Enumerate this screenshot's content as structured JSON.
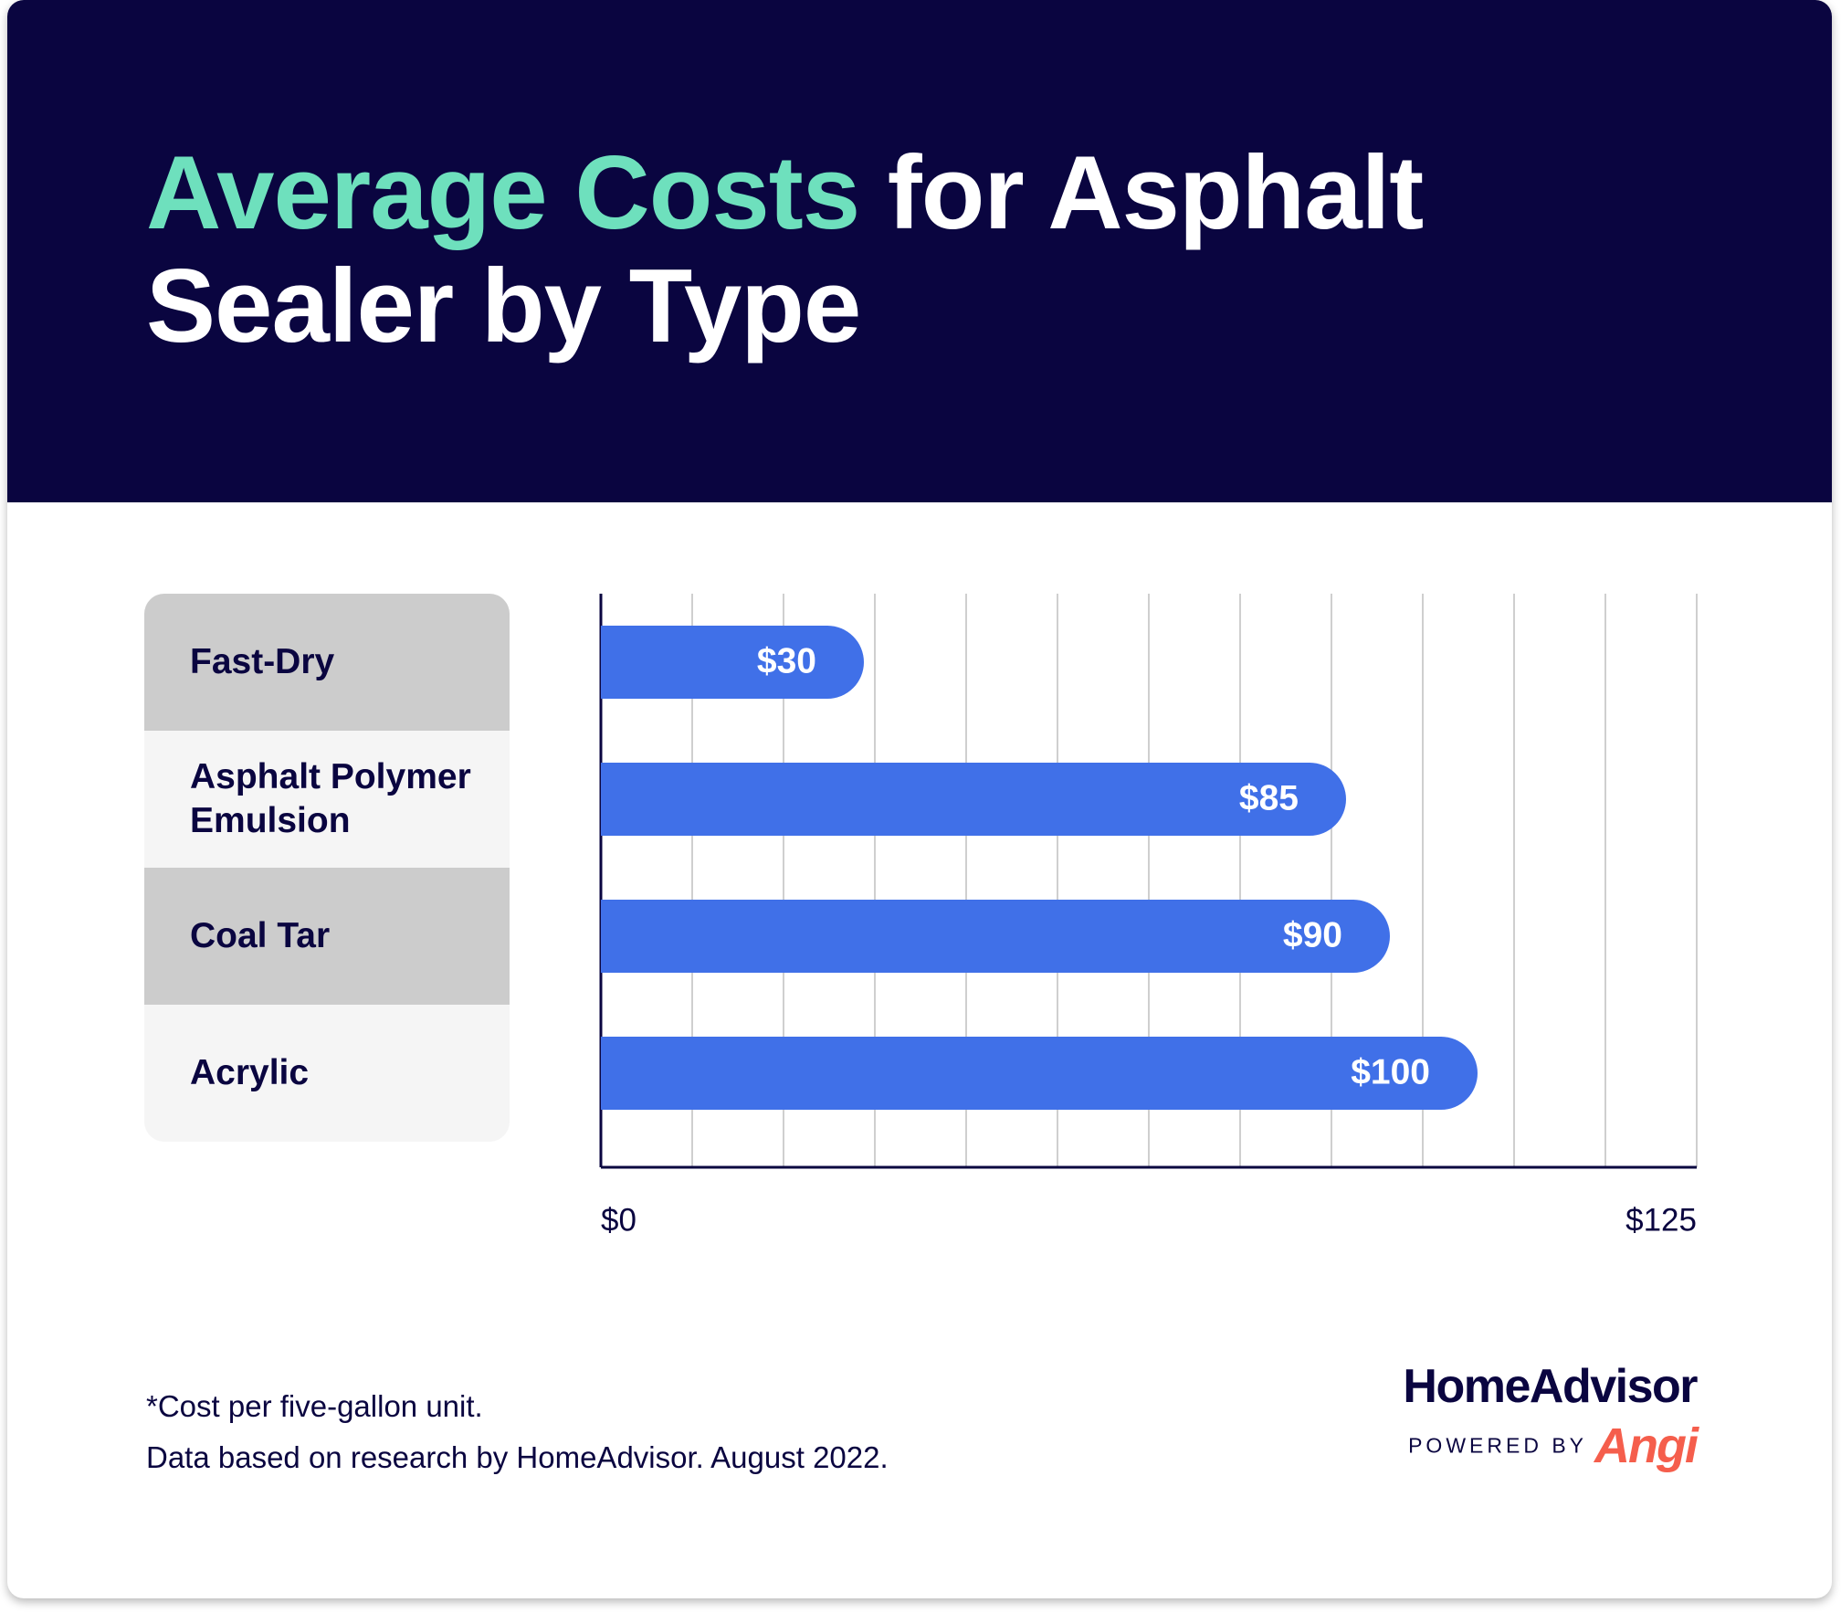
{
  "header": {
    "title_highlight": "Average Costs",
    "title_rest_line1": " for Asphalt",
    "title_line2": "Sealer by Type"
  },
  "colors": {
    "header_bg": "#0a0540",
    "title_highlight": "#6ee0bd",
    "bar": "#4070e8",
    "label_dark_bg": "#cccccc",
    "label_light_bg": "#f5f5f5",
    "text_dark": "#0a0540",
    "brand_accent": "#f55e4c"
  },
  "chart_data": {
    "type": "bar",
    "orientation": "horizontal",
    "categories": [
      "Fast-Dry",
      "Asphalt Polymer Emulsion",
      "Coal Tar",
      "Acrylic"
    ],
    "values": [
      30,
      85,
      90,
      100
    ],
    "value_labels": [
      "$30",
      "$85",
      "$90",
      "$100"
    ],
    "xlim": [
      0,
      125
    ],
    "x_tick_labels": [
      "$0",
      "$125"
    ],
    "vertical_gridlines": 12,
    "grid": true
  },
  "footnote": {
    "line1": "*Cost per five-gallon unit.",
    "line2": "Data based on research by HomeAdvisor. August 2022."
  },
  "brand": {
    "name": "HomeAdvisor",
    "powered_by": "POWERED BY",
    "partner": "Angi"
  }
}
